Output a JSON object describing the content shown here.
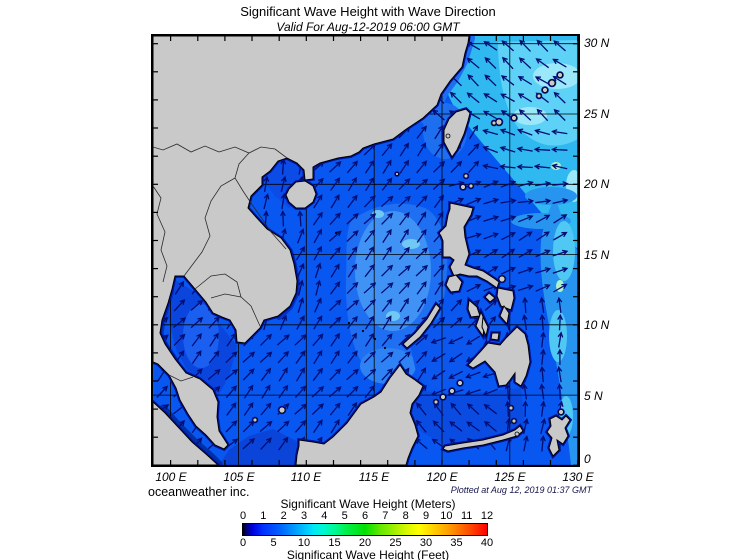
{
  "header": {
    "title": "Significant Wave Height with Wave Direction",
    "subtitle": "Valid For Aug-12-2019 06:00 GMT"
  },
  "footer": {
    "credit": "oceanweather inc.",
    "plotted_note": "Plotted at Aug 12, 2019 01:37 GMT"
  },
  "axes": {
    "lon_labels": [
      "100 E",
      "105 E",
      "110 E",
      "115 E",
      "120 E",
      "125 E",
      "130 E"
    ],
    "lat_labels": [
      "30 N",
      "25 N",
      "20 N",
      "15 N",
      "10 N",
      "5 N",
      "0"
    ]
  },
  "legend": {
    "meters_title": "Significant Wave Height (Meters)",
    "feet_title": "Significant Wave Height (Feet)",
    "meters_ticks": [
      0,
      1,
      2,
      3,
      4,
      5,
      6,
      7,
      8,
      9,
      10,
      11,
      12
    ],
    "feet_ticks": [
      0,
      5,
      10,
      15,
      20,
      25,
      30,
      35,
      40
    ]
  },
  "palette": {
    "land": "#c9c9c9",
    "coast_outline": "#000000",
    "coast_halo": "#00129b",
    "border_line": "#2b2b2b",
    "grid_line": "#000000",
    "arrow": "#000d73",
    "ocean_base": "#0757f0",
    "ocean_ne_light": "#2fb9f0",
    "ocean_ne_lighter": "#5ed2f6",
    "ocean_ne_lightest": "#9be8fb",
    "ocean_green_spot": "#afefc9",
    "ocean_east_band": "#2795f0",
    "ocean_east_streak": "#4fc9f4",
    "ocean_mid_band": "#1f6ff2",
    "ocean_mid_inner": "#4093f5",
    "ocean_mid_spot": "#72c8f5",
    "ocean_coast_band": "#1e6ff0",
    "ocean_tonkin": "#0b4be6",
    "ocean_gulf_thailand": "#0a46de",
    "ocean_gulf_center": "#1b5ff0",
    "ocean_dark_band": "#0334c4",
    "ocean_java": "#0a44d8",
    "ocean_celebes": "#0a4ce2",
    "ocean_sulu": "#0c58ee",
    "ocean_malacca": "#0030a8",
    "ocean_nw_borneo": "#2f82f3"
  },
  "chart_data": {
    "type": "heatmap",
    "title": "Significant Wave Height with Wave Direction",
    "valid_time": "Aug-12-2019 06:00 GMT",
    "plotted_time": "Aug 12, 2019 01:37 GMT",
    "region": "South China Sea / Western Pacific",
    "x_axis": {
      "unit": "degrees East",
      "grid_lons": [
        100,
        105,
        110,
        115,
        120,
        125,
        130
      ],
      "range": [
        98.7,
        130
      ]
    },
    "y_axis": {
      "unit": "degrees North",
      "grid_lats": [
        0,
        5,
        10,
        15,
        20,
        25,
        30
      ],
      "range": [
        0,
        30.5
      ]
    },
    "colorbar": {
      "meters": {
        "min": 0,
        "max": 12,
        "ticks": [
          0,
          1,
          2,
          3,
          4,
          5,
          6,
          7,
          8,
          9,
          10,
          11,
          12
        ]
      },
      "feet": {
        "min": 0,
        "max": 40,
        "ticks": [
          0,
          5,
          10,
          15,
          20,
          25,
          30,
          35,
          40
        ]
      },
      "gradient": [
        {
          "pos": 0.0,
          "color": "#000000"
        },
        {
          "pos": 0.015,
          "color": "#000080"
        },
        {
          "pos": 0.04,
          "color": "#0000e0"
        },
        {
          "pos": 0.08,
          "color": "#0030ff"
        },
        {
          "pos": 0.15,
          "color": "#0060ff"
        },
        {
          "pos": 0.2,
          "color": "#0090ff"
        },
        {
          "pos": 0.25,
          "color": "#00c0ff"
        },
        {
          "pos": 0.29,
          "color": "#00e8f8"
        },
        {
          "pos": 0.33,
          "color": "#00f8d0"
        },
        {
          "pos": 0.38,
          "color": "#00f890"
        },
        {
          "pos": 0.42,
          "color": "#00f050"
        },
        {
          "pos": 0.5,
          "color": "#00e000"
        },
        {
          "pos": 0.56,
          "color": "#60e800"
        },
        {
          "pos": 0.62,
          "color": "#a0f000"
        },
        {
          "pos": 0.67,
          "color": "#d8f800"
        },
        {
          "pos": 0.72,
          "color": "#ffff00"
        },
        {
          "pos": 0.78,
          "color": "#ffd000"
        },
        {
          "pos": 0.84,
          "color": "#ffa000"
        },
        {
          "pos": 0.89,
          "color": "#ff7000"
        },
        {
          "pos": 0.94,
          "color": "#ff4000"
        },
        {
          "pos": 1.0,
          "color": "#ff0000"
        }
      ]
    },
    "wave_heights_m": [
      {
        "area": "East China Sea / NE Pacific corner",
        "approx_m": 2.5
      },
      {
        "area": "Philippine Sea east of Luzon",
        "approx_m": 2.0
      },
      {
        "area": "central South China Sea",
        "approx_m": 1.5
      },
      {
        "area": "Gulf of Thailand / Gulf of Tonkin",
        "approx_m": 1.0
      },
      {
        "area": "coastal margins and straits",
        "approx_m": 0.5
      }
    ],
    "arrow_field": [
      {
        "name": "gulf-of-tonkin",
        "lon": [
          104.5,
          110.3
        ],
        "lat": [
          16.5,
          22.0
        ],
        "dir_deg": 85
      },
      {
        "name": "pacific-nw-flow",
        "lon": [
          119.5,
          130.6
        ],
        "lat": [
          24.2,
          30.6
        ],
        "dir_deg": 142
      },
      {
        "name": "east-taiwan-ne",
        "lon": [
          119.8,
          123.0
        ],
        "lat": [
          21.2,
          24.2
        ],
        "dir_deg": 55
      },
      {
        "name": "pacific-west-flow",
        "lon": [
          123.0,
          130.6
        ],
        "lat": [
          21.2,
          24.2
        ],
        "dir_deg": 168
      },
      {
        "name": "luzon-strait-east",
        "lon": [
          121.0,
          130.6
        ],
        "lat": [
          18.6,
          21.2
        ],
        "dir_deg": 15
      },
      {
        "name": "east-philippines-ene",
        "lon": [
          122.0,
          130.6
        ],
        "lat": [
          12.0,
          18.6
        ],
        "dir_deg": 25
      },
      {
        "name": "east-philippines-n",
        "lon": [
          124.3,
          130.6
        ],
        "lat": [
          4.5,
          12.0
        ],
        "dir_deg": 90
      },
      {
        "name": "molucca-north",
        "lon": [
          124.5,
          130.6
        ],
        "lat": [
          0.0,
          4.5
        ],
        "dir_deg": 85
      },
      {
        "name": "sulu-sea-wsw",
        "lon": [
          118.8,
          124.3
        ],
        "lat": [
          5.2,
          10.0
        ],
        "dir_deg": 205
      },
      {
        "name": "celebes-nw",
        "lon": [
          116.5,
          124.5
        ],
        "lat": [
          0.0,
          5.2
        ],
        "dir_deg": 135
      },
      {
        "name": "gulf-of-thailand-ne",
        "lon": [
          98.6,
          104.6
        ],
        "lat": [
          5.0,
          13.6
        ],
        "dir_deg": 48
      },
      {
        "name": "malacca-ne",
        "lon": [
          98.6,
          104.5
        ],
        "lat": [
          0.0,
          5.0
        ],
        "dir_deg": 45
      },
      {
        "name": "vietnam-coast-nne",
        "lon": [
          106.0,
          112.0
        ],
        "lat": [
          9.5,
          16.5
        ],
        "dir_deg": 68
      },
      {
        "name": "south-china-sea-ne",
        "lon": [
          98.6,
          130.6
        ],
        "lat": [
          0.0,
          30.6
        ],
        "dir_deg": 50
      }
    ]
  }
}
